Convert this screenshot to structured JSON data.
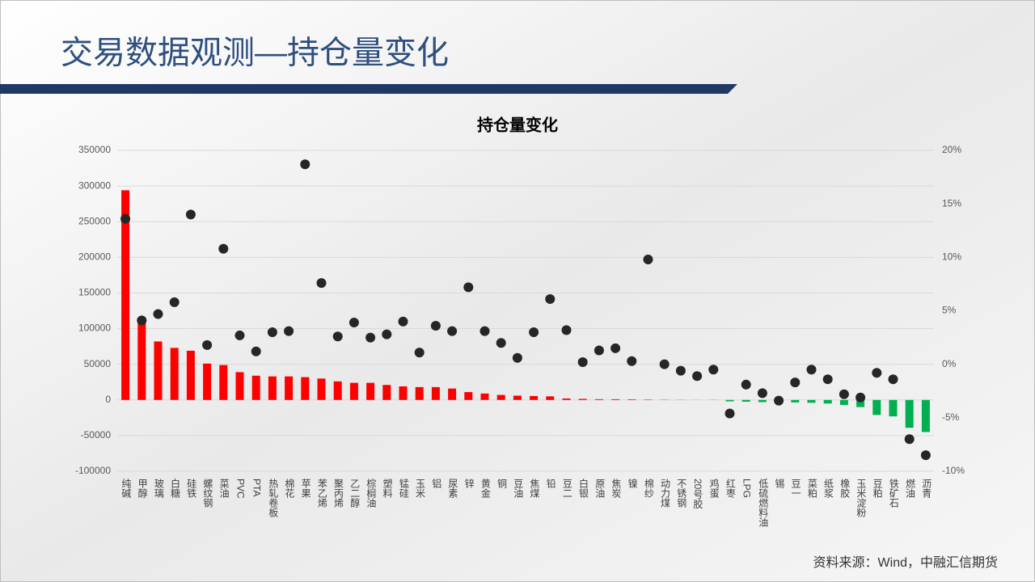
{
  "header": {
    "title": "交易数据观测—持仓量变化"
  },
  "footer": {
    "source": "资料来源：Wind，中融汇信期货"
  },
  "chart_data": {
    "type": "bar-scatter",
    "title": "持仓量变化",
    "categories": [
      "纯碱",
      "甲醇",
      "玻璃",
      "白糖",
      "硅铁",
      "螺纹钢",
      "菜油",
      "PVC",
      "PTA",
      "热轧卷板",
      "棉花",
      "苹果",
      "苯乙烯",
      "聚丙烯",
      "乙二醇",
      "棕榈油",
      "塑料",
      "锰硅",
      "玉米",
      "铝",
      "尿素",
      "锌",
      "黄金",
      "铜",
      "豆油",
      "焦煤",
      "铅",
      "豆二",
      "白银",
      "原油",
      "焦炭",
      "镍",
      "棉纱",
      "动力煤",
      "不锈钢",
      "20号胶",
      "鸡蛋",
      "红枣",
      "LPG",
      "低硫燃料油",
      "锡",
      "豆一",
      "菜粕",
      "纸浆",
      "橡胶",
      "玉米淀粉",
      "豆粕",
      "铁矿石",
      "燃油",
      "沥青"
    ],
    "series": [
      {
        "type": "bar",
        "color": "#ff0000",
        "negative_color": "#00b050",
        "values": [
          294000,
          114000,
          82000,
          73000,
          69000,
          51000,
          49000,
          39000,
          34000,
          33000,
          33000,
          32000,
          30000,
          26000,
          24000,
          24000,
          21000,
          19000,
          18000,
          18000,
          16000,
          11000,
          9000,
          7000,
          6000,
          5500,
          5000,
          2000,
          1500,
          1000,
          1000,
          800,
          500,
          300,
          200,
          100,
          -200,
          -2000,
          -2500,
          -3000,
          -3000,
          -3500,
          -4000,
          -5000,
          -7000,
          -10000,
          -21000,
          -23000,
          -39000,
          -45000
        ]
      },
      {
        "type": "scatter",
        "axis": "y2",
        "color": "#262626",
        "values": [
          13.6,
          4.1,
          4.7,
          5.8,
          14.0,
          1.8,
          10.8,
          2.7,
          1.2,
          3.0,
          3.1,
          18.7,
          7.6,
          2.6,
          3.9,
          2.5,
          2.8,
          4.0,
          1.1,
          3.6,
          3.1,
          7.2,
          3.1,
          2.0,
          0.6,
          3.0,
          6.1,
          3.2,
          0.2,
          1.3,
          1.5,
          0.3,
          9.8,
          0,
          -0.6,
          -1.1,
          -0.5,
          -4.6,
          -1.9,
          -2.7,
          -3.4,
          -1.7,
          -0.5,
          -1.4,
          -2.8,
          -3.1,
          -0.8,
          -1.4,
          -7.0,
          -8.5
        ]
      }
    ],
    "ylim": [
      -100000,
      350000
    ],
    "yticks": [
      -100000,
      -50000,
      0,
      50000,
      100000,
      150000,
      200000,
      250000,
      300000,
      350000
    ],
    "y2lim": [
      -10,
      20
    ],
    "y2ticks": [
      {
        "value": -10,
        "label": "-10%"
      },
      {
        "value": -5,
        "label": "-5%"
      },
      {
        "value": 0,
        "label": "0%"
      },
      {
        "value": 5,
        "label": "5%"
      },
      {
        "value": 10,
        "label": "10%"
      },
      {
        "value": 15,
        "label": "15%"
      },
      {
        "value": 20,
        "label": "20%"
      }
    ],
    "grid": true
  }
}
